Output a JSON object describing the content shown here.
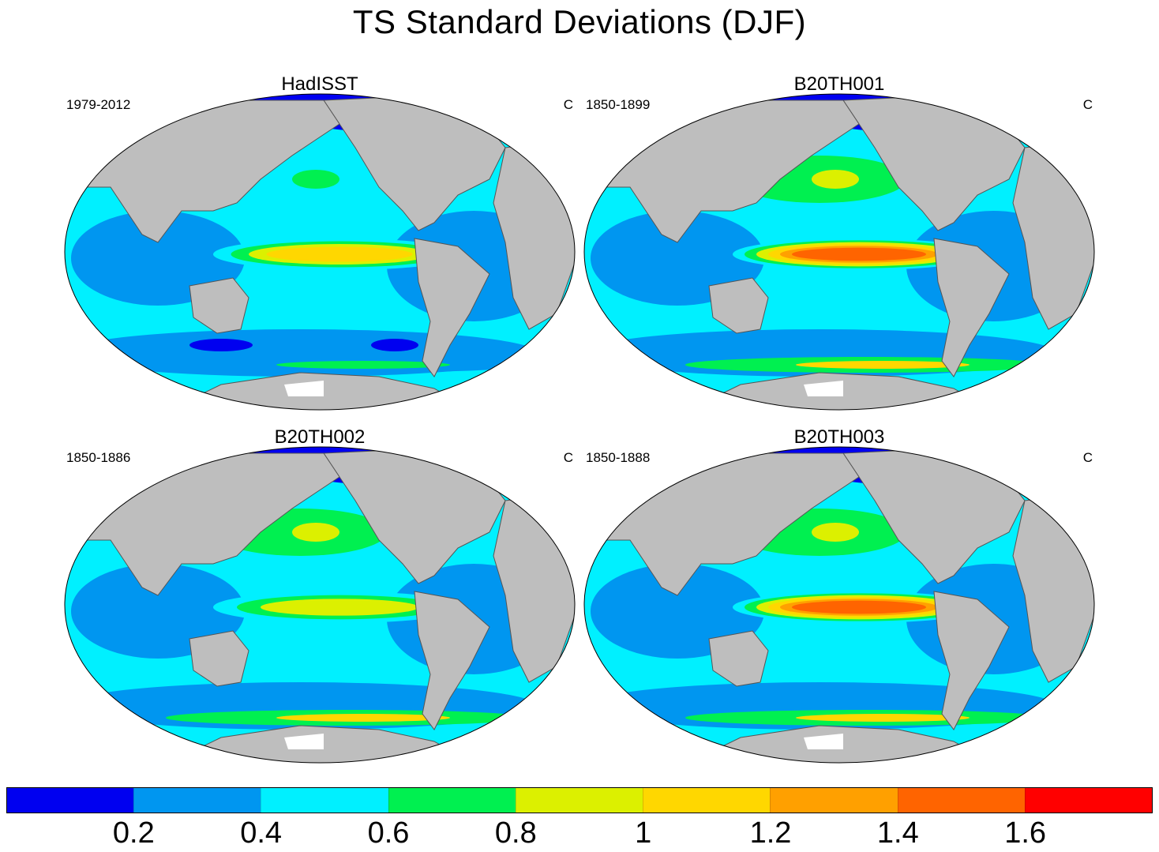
{
  "title": "TS Standard Deviations (DJF)",
  "panels": [
    {
      "title": "HadISST",
      "period": "1979-2012",
      "unit": "C",
      "ninoLevel": 1.2,
      "arcticColor": "#0000f0",
      "southernOceanLevel": 0.4
    },
    {
      "title": "B20TH001",
      "period": "1850-1899",
      "unit": "C",
      "ninoLevel": 1.6,
      "arcticColor": "#0000f0",
      "southernOceanLevel": 0.8
    },
    {
      "title": "B20TH002",
      "period": "1850-1886",
      "unit": "C",
      "ninoLevel": 1.0,
      "arcticColor": "#0000f0",
      "southernOceanLevel": 0.8
    },
    {
      "title": "B20TH003",
      "period": "1850-1888",
      "unit": "C",
      "ninoLevel": 1.6,
      "arcticColor": "#0000f0",
      "southernOceanLevel": 0.8
    }
  ],
  "colorbar": {
    "colors": [
      "#0000f0",
      "#0096f0",
      "#00f0ff",
      "#00f050",
      "#dcf000",
      "#ffd700",
      "#ffa000",
      "#ff6400",
      "#ff0000"
    ],
    "tick_labels": [
      "0.2",
      "0.4",
      "0.6",
      "0.8",
      "1",
      "1.2",
      "1.4",
      "1.6"
    ]
  },
  "colors": {
    "land": "#bebebe",
    "ice_white": "#ffffff"
  }
}
